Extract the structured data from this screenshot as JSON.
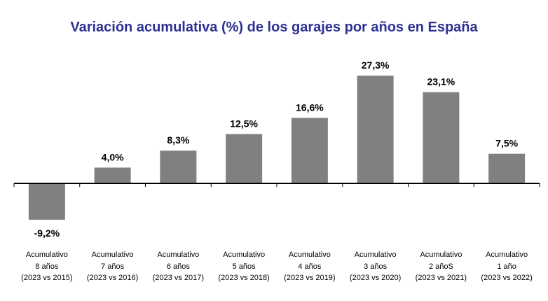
{
  "chart_data": {
    "type": "bar",
    "title": "Variación acumulativa (%) de los garajes por años en España",
    "categories": [
      [
        "Acumulativo",
        "8 años",
        "(2023 vs 2015)"
      ],
      [
        "Acumulativo",
        "7 años",
        "(2023 vs 2016)"
      ],
      [
        "Acumulativo",
        "6 años",
        "(2023 vs 2017)"
      ],
      [
        "Acumulativo",
        "5 años",
        "(2023 vs 2018)"
      ],
      [
        "Acumulativo",
        "4 años",
        "(2023 vs 2019)"
      ],
      [
        "Acumulativo",
        "3 años",
        "(2023 vs 2020)"
      ],
      [
        "Acumulativo",
        "2 añoS",
        "(2023 vs 2021)"
      ],
      [
        "Acumulativo",
        "1 año",
        "(2023 vs 2022)"
      ]
    ],
    "values": [
      -9.2,
      4.0,
      8.3,
      12.5,
      16.6,
      27.3,
      23.1,
      7.5
    ],
    "data_labels": [
      "-9,2%",
      "4,0%",
      "8,3%",
      "12,5%",
      "16,6%",
      "27,3%",
      "23,1%",
      "7,5%"
    ],
    "bar_color": "#808080",
    "title_color": "#2e3192",
    "grid": false,
    "legend": "none"
  }
}
